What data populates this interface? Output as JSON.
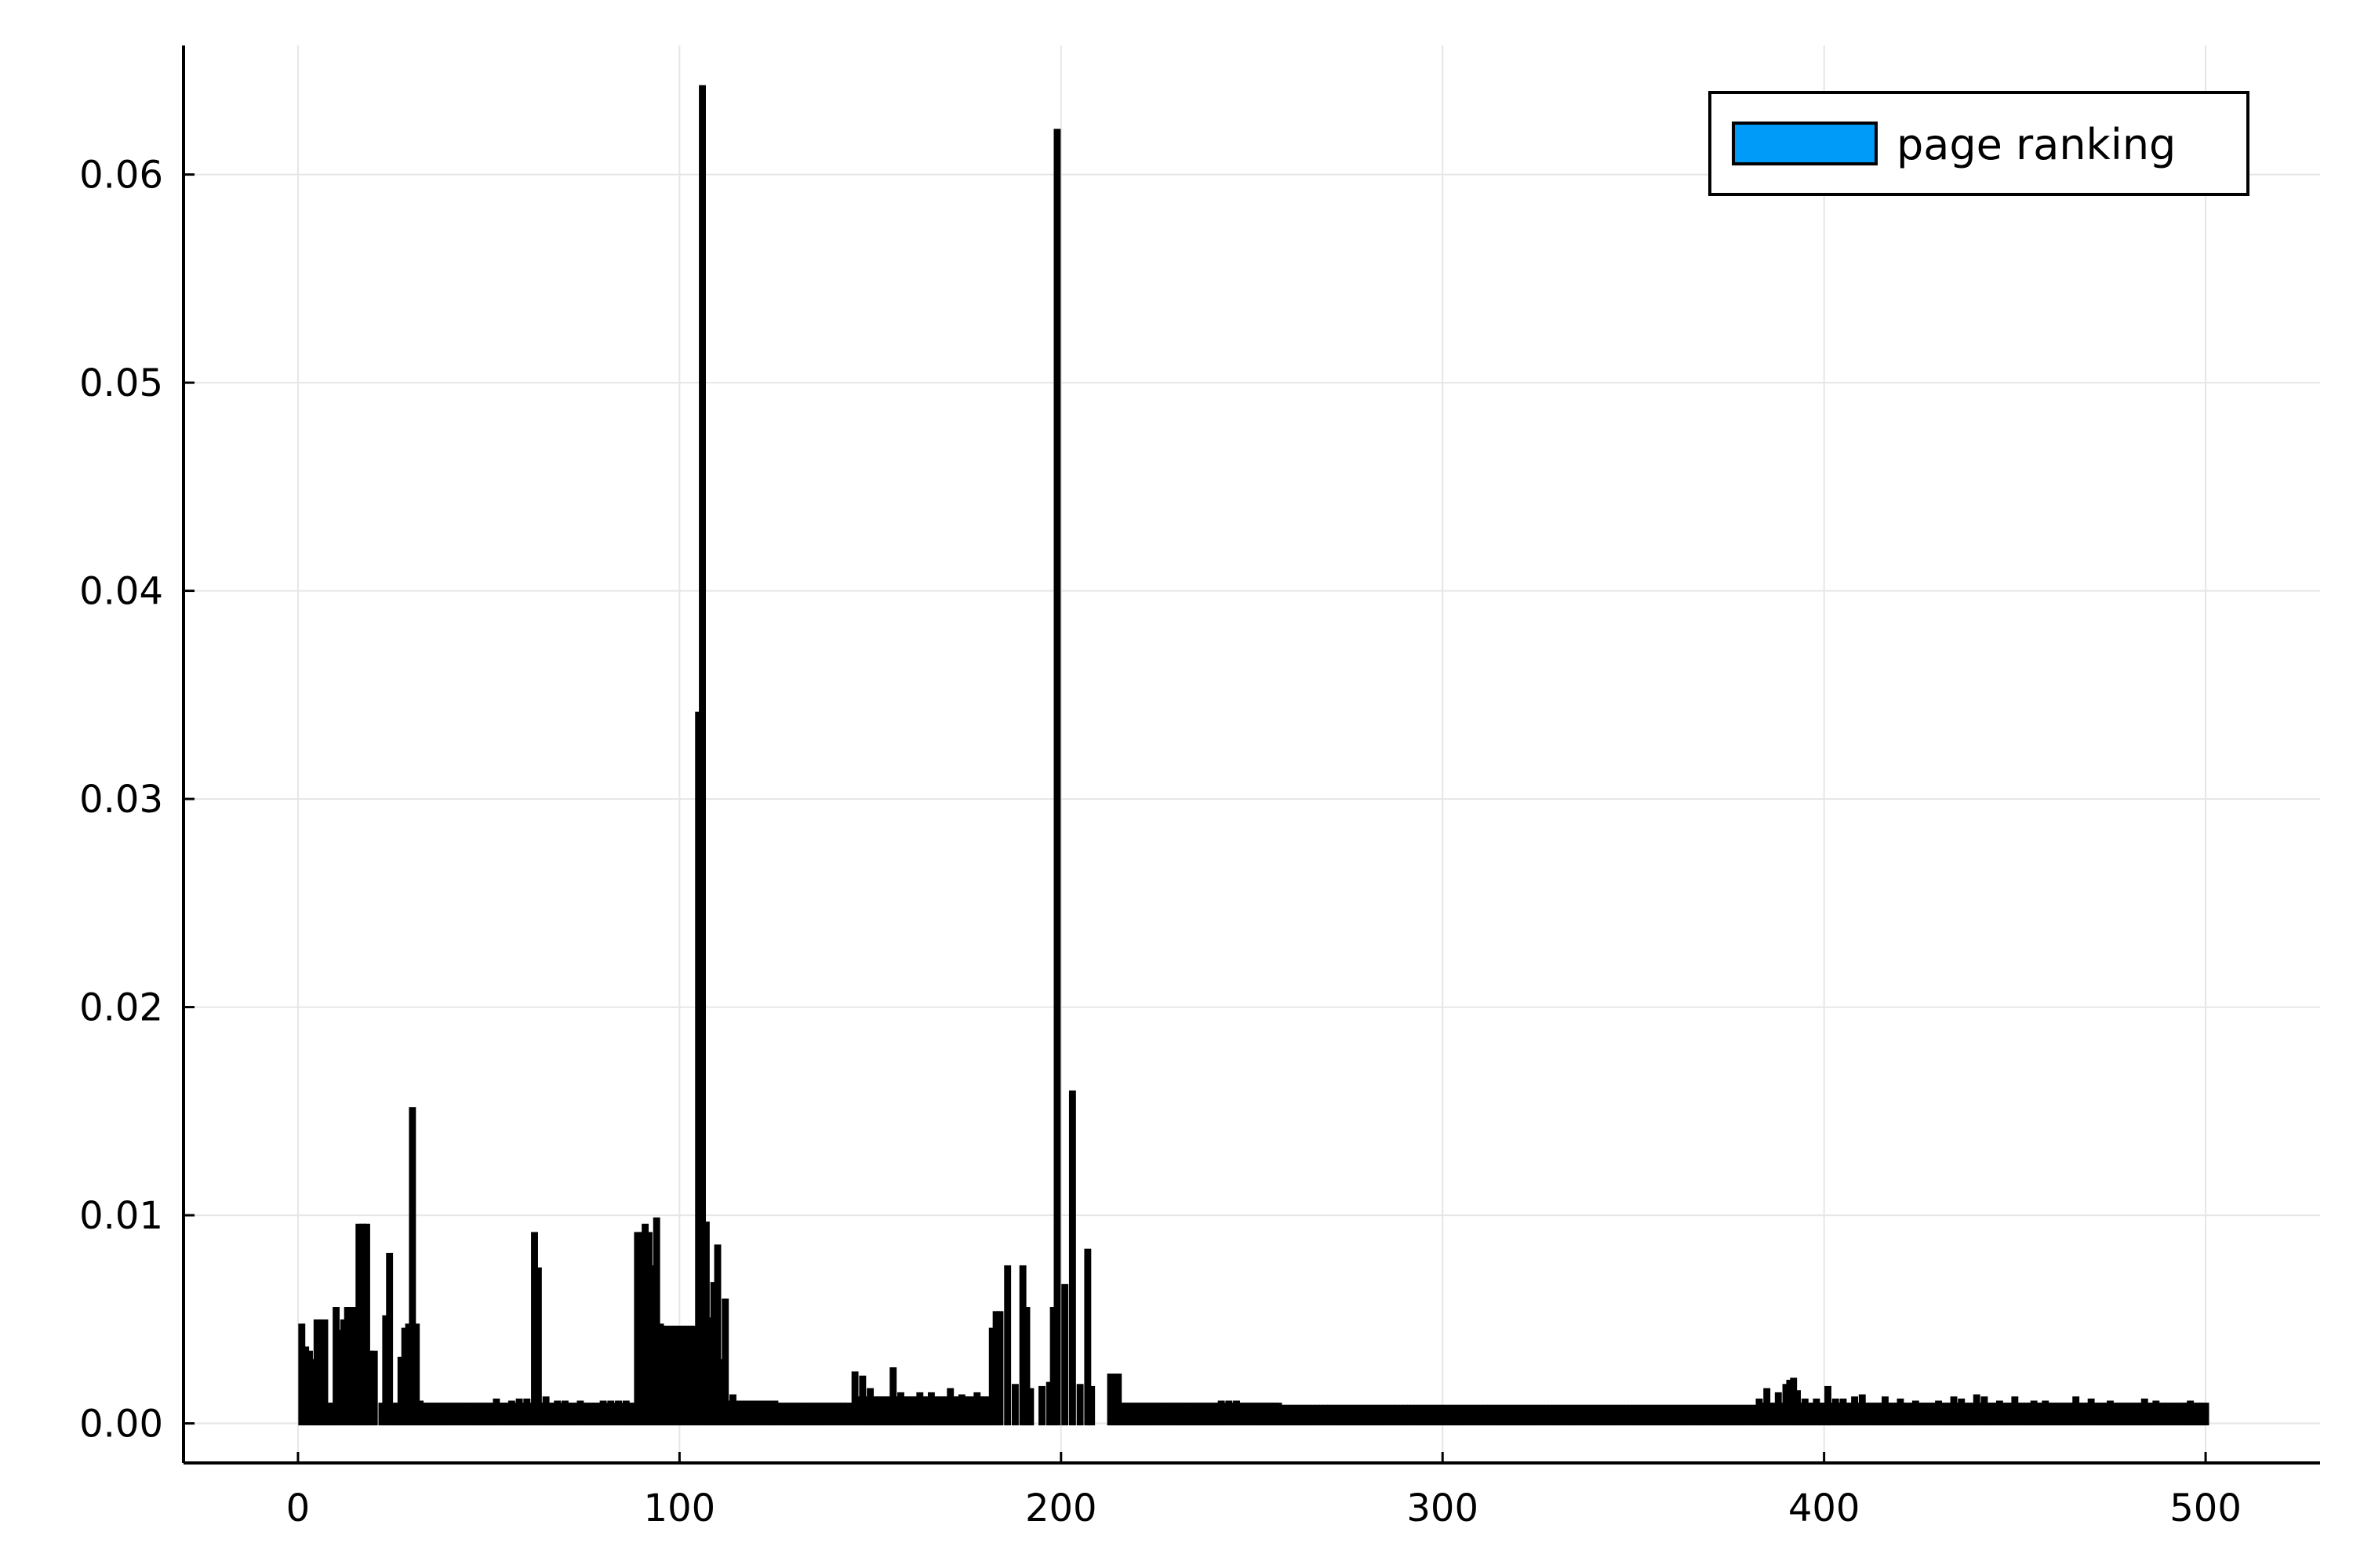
{
  "chart_data": {
    "type": "bar",
    "title": "",
    "xlabel": "",
    "ylabel": "",
    "xlim": [
      -30,
      530
    ],
    "ylim": [
      -0.0019,
      0.0662
    ],
    "xticks": [
      0,
      100,
      200,
      300,
      400,
      500
    ],
    "xtick_labels": [
      "0",
      "100",
      "200",
      "300",
      "400",
      "500"
    ],
    "yticks": [
      0.0,
      0.01,
      0.02,
      0.03,
      0.04,
      0.05,
      0.06
    ],
    "ytick_labels": [
      "0.00",
      "0.01",
      "0.02",
      "0.03",
      "0.04",
      "0.05",
      "0.06"
    ],
    "grid": true,
    "legend_position": "top-right",
    "series": [
      {
        "name": "page ranking",
        "color": "#009af9",
        "edge_color": "#000000",
        "spikes": [
          [
            1,
            0.0047
          ],
          [
            2,
            0.0036
          ],
          [
            3,
            0.0034
          ],
          [
            4,
            0.003
          ],
          [
            5,
            0.0049
          ],
          [
            6,
            0.0049
          ],
          [
            7,
            0.0049
          ],
          [
            8,
            0.0009
          ],
          [
            9,
            0.0009
          ],
          [
            10,
            0.0055
          ],
          [
            11,
            0.0044
          ],
          [
            12,
            0.0049
          ],
          [
            13,
            0.0055
          ],
          [
            14,
            0.0055
          ],
          [
            15,
            0.0055
          ],
          [
            16,
            0.0095
          ],
          [
            17,
            0.0095
          ],
          [
            18,
            0.0095
          ],
          [
            19,
            0.0034
          ],
          [
            20,
            0.0034
          ],
          [
            22,
            0.0009
          ],
          [
            23,
            0.0051
          ],
          [
            24,
            0.0081
          ],
          [
            25,
            0.0009
          ],
          [
            26,
            0.0009
          ],
          [
            27,
            0.0031
          ],
          [
            28,
            0.0045
          ],
          [
            29,
            0.0047
          ],
          [
            30,
            0.0151
          ],
          [
            31,
            0.0047
          ],
          [
            32,
            0.001
          ],
          [
            52,
            0.0011
          ],
          [
            56,
            0.001
          ],
          [
            58,
            0.0011
          ],
          [
            60,
            0.0011
          ],
          [
            62,
            0.0091
          ],
          [
            63,
            0.0074
          ],
          [
            65,
            0.0012
          ],
          [
            68,
            0.001
          ],
          [
            70,
            0.001
          ],
          [
            74,
            0.001
          ],
          [
            80,
            0.001
          ],
          [
            82,
            0.001
          ],
          [
            84,
            0.001
          ],
          [
            86,
            0.001
          ],
          [
            89,
            0.0091
          ],
          [
            90,
            0.0091
          ],
          [
            91,
            0.0095
          ],
          [
            92,
            0.0091
          ],
          [
            93,
            0.0075
          ],
          [
            94,
            0.0098
          ],
          [
            95,
            0.0047
          ],
          [
            96,
            0.0046
          ],
          [
            97,
            0.0046
          ],
          [
            98,
            0.0046
          ],
          [
            99,
            0.0046
          ],
          [
            100,
            0.0046
          ],
          [
            101,
            0.0046
          ],
          [
            102,
            0.0046
          ],
          [
            103,
            0.0046
          ],
          [
            104,
            0.0046
          ],
          [
            105,
            0.0341
          ],
          [
            106,
            0.0642
          ],
          [
            107,
            0.0096
          ],
          [
            108,
            0.005
          ],
          [
            109,
            0.0067
          ],
          [
            110,
            0.0085
          ],
          [
            111,
            0.003
          ],
          [
            112,
            0.0059
          ],
          [
            114,
            0.0013
          ],
          [
            127,
            0.0009
          ],
          [
            146,
            0.0024
          ],
          [
            148,
            0.0022
          ],
          [
            150,
            0.0016
          ],
          [
            156,
            0.0026
          ],
          [
            158,
            0.0014
          ],
          [
            163,
            0.0014
          ],
          [
            166,
            0.0014
          ],
          [
            171,
            0.0016
          ],
          [
            174,
            0.0013
          ],
          [
            178,
            0.0014
          ],
          [
            182,
            0.0045
          ],
          [
            183,
            0.0053
          ],
          [
            184,
            0.0053
          ],
          [
            186,
            0.0075
          ],
          [
            188,
            0.0018
          ],
          [
            190,
            0.0075
          ],
          [
            191,
            0.0055
          ],
          [
            192,
            0.0016
          ],
          [
            195,
            0.0017
          ],
          [
            197,
            0.0019
          ],
          [
            198,
            0.0055
          ],
          [
            199,
            0.0621
          ],
          [
            201,
            0.0066
          ],
          [
            203,
            0.0159
          ],
          [
            205,
            0.0018
          ],
          [
            207,
            0.0083
          ],
          [
            208,
            0.0017
          ],
          [
            213,
            0.0023
          ],
          [
            214,
            0.0023
          ],
          [
            215,
            0.0023
          ],
          [
            242,
            0.001
          ],
          [
            244,
            0.001
          ],
          [
            246,
            0.001
          ],
          [
            383,
            0.0011
          ],
          [
            385,
            0.0016
          ],
          [
            388,
            0.0014
          ],
          [
            390,
            0.0018
          ],
          [
            391,
            0.002
          ],
          [
            392,
            0.0021
          ],
          [
            393,
            0.0015
          ],
          [
            395,
            0.0011
          ],
          [
            398,
            0.0011
          ],
          [
            401,
            0.0017
          ],
          [
            403,
            0.0011
          ],
          [
            405,
            0.0011
          ],
          [
            408,
            0.0012
          ],
          [
            410,
            0.0013
          ],
          [
            416,
            0.0012
          ],
          [
            420,
            0.0011
          ],
          [
            424,
            0.001
          ],
          [
            430,
            0.001
          ],
          [
            434,
            0.0012
          ],
          [
            436,
            0.0011
          ],
          [
            440,
            0.0013
          ],
          [
            442,
            0.0012
          ],
          [
            446,
            0.001
          ],
          [
            450,
            0.0012
          ],
          [
            455,
            0.001
          ],
          [
            458,
            0.001
          ],
          [
            466,
            0.0012
          ],
          [
            470,
            0.0011
          ],
          [
            475,
            0.001
          ],
          [
            478,
            0.0009
          ],
          [
            484,
            0.0011
          ],
          [
            487,
            0.001
          ],
          [
            491,
            0.0009
          ],
          [
            496,
            0.001
          ],
          [
            499,
            0.0009
          ]
        ],
        "baseline_values": [
          {
            "x_range": [
              33,
              88
            ],
            "value": 0.0009
          },
          {
            "x_range": [
              113,
              125
            ],
            "value": 0.001
          },
          {
            "x_range": [
              126,
              145
            ],
            "value": 0.0009
          },
          {
            "x_range": [
              147,
              181
            ],
            "value": 0.0012
          },
          {
            "x_range": [
              216,
              257
            ],
            "value": 0.0009
          },
          {
            "x_range": [
              258,
              382
            ],
            "value": 0.0008
          },
          {
            "x_range": [
              383,
              500
            ],
            "value": 0.0009
          }
        ]
      }
    ]
  }
}
